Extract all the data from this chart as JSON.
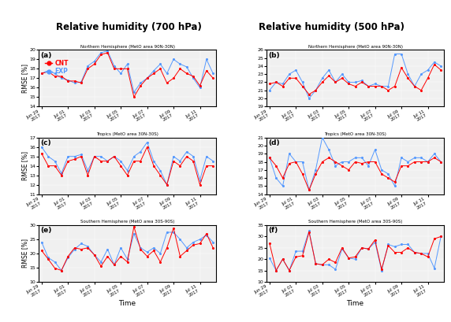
{
  "col_titles": [
    "Relative humidity (700 hPa)",
    "Relative humidity (500 hPa)"
  ],
  "panel_labels": [
    [
      "(a)",
      "(b)"
    ],
    [
      "(c)",
      "(d)"
    ],
    [
      "(e)",
      "(f)"
    ]
  ],
  "subtitles": [
    "Northern Hemisphere (MetO area 90N-30N)",
    "Tropics (MetO area 30N-30S)",
    "Southern Hemisphere (MetO area 30S-90S)"
  ],
  "ylabel": "RMSE [%]",
  "xlabel": "Time",
  "x_ticklabels": [
    "Jun 29\n2017",
    "Jul 01\n2017",
    "Jul 03\n2017",
    "Jul 05\n2017",
    "Jul 07\n2017",
    "Jul 09\n2017",
    "Jul 11\n2017"
  ],
  "cnt_color": "#FF0000",
  "exp_color": "#5599FF",
  "ylims": [
    [
      [
        14,
        20
      ],
      [
        19,
        26
      ]
    ],
    [
      [
        11,
        17
      ],
      [
        14,
        21
      ]
    ],
    [
      [
        10,
        30
      ],
      [
        10,
        35
      ]
    ]
  ],
  "yticks": [
    [
      [
        14,
        15,
        16,
        17,
        18,
        19,
        20
      ],
      [
        19,
        20,
        21,
        22,
        23,
        24,
        25,
        26
      ]
    ],
    [
      [
        11,
        12,
        13,
        14,
        15,
        16,
        17
      ],
      [
        14,
        15,
        16,
        17,
        18,
        19,
        20,
        21
      ]
    ],
    [
      [
        10,
        15,
        20,
        25,
        30
      ],
      [
        10,
        15,
        20,
        25,
        30,
        35
      ]
    ]
  ],
  "data": {
    "700_NH_cnt": [
      17.5,
      17.7,
      17.2,
      17.2,
      16.7,
      16.7,
      16.5,
      18.0,
      18.5,
      19.5,
      19.7,
      18.0,
      18.0,
      18.0,
      15.0,
      16.2,
      17.0,
      17.5,
      18.0,
      16.5,
      17.0,
      18.0,
      17.5,
      17.2,
      16.2,
      17.8,
      17.0
    ],
    "700_NH_exp": [
      17.5,
      17.8,
      17.5,
      17.0,
      16.8,
      16.5,
      16.6,
      18.3,
      18.8,
      19.7,
      19.9,
      18.3,
      17.5,
      18.5,
      15.5,
      16.5,
      17.0,
      17.8,
      18.5,
      17.5,
      19.0,
      18.5,
      18.2,
      17.0,
      16.0,
      19.0,
      17.5
    ],
    "700_TR_cnt": [
      15.3,
      14.0,
      14.0,
      13.0,
      14.5,
      14.7,
      15.0,
      13.0,
      15.0,
      14.5,
      14.5,
      15.0,
      14.0,
      13.0,
      14.5,
      14.5,
      16.0,
      14.0,
      13.0,
      12.0,
      14.5,
      14.0,
      15.0,
      14.5,
      12.0,
      14.0,
      14.0
    ],
    "700_TR_exp": [
      16.0,
      15.0,
      14.5,
      13.2,
      15.0,
      15.0,
      15.2,
      13.5,
      15.0,
      15.0,
      14.5,
      15.0,
      14.5,
      13.5,
      15.0,
      15.5,
      16.5,
      14.5,
      13.5,
      12.0,
      15.0,
      14.5,
      15.5,
      15.0,
      12.5,
      15.0,
      14.5
    ],
    "700_SH_cnt": [
      21.0,
      18.0,
      14.8,
      14.0,
      19.0,
      22.0,
      21.5,
      22.0,
      19.5,
      15.5,
      19.0,
      16.0,
      19.0,
      17.0,
      29.5,
      21.5,
      19.0,
      21.0,
      17.0,
      22.0,
      29.0,
      19.0,
      21.0,
      23.0,
      23.5,
      27.0,
      22.0
    ],
    "700_SH_exp": [
      24.0,
      18.5,
      17.0,
      14.0,
      18.5,
      21.5,
      23.5,
      22.5,
      19.5,
      17.0,
      21.5,
      16.0,
      22.0,
      18.0,
      27.0,
      22.0,
      20.5,
      22.0,
      20.0,
      27.5,
      27.5,
      25.0,
      22.0,
      24.0,
      25.0,
      26.5,
      24.0
    ],
    "500_NH_cnt": [
      21.8,
      22.0,
      21.5,
      22.5,
      22.5,
      21.5,
      20.5,
      21.0,
      22.0,
      22.8,
      22.0,
      22.5,
      21.8,
      21.5,
      22.0,
      21.5,
      21.5,
      21.5,
      21.0,
      21.5,
      23.8,
      22.5,
      21.5,
      21.0,
      22.5,
      24.2,
      23.5
    ],
    "500_NH_exp": [
      21.0,
      22.0,
      21.8,
      23.0,
      23.5,
      22.0,
      20.0,
      21.0,
      22.5,
      23.5,
      22.0,
      23.0,
      22.0,
      22.0,
      22.2,
      21.5,
      21.8,
      21.5,
      21.5,
      25.5,
      25.5,
      23.0,
      21.5,
      23.0,
      23.5,
      24.5,
      24.0
    ],
    "500_TR_cnt": [
      18.5,
      17.5,
      16.0,
      17.8,
      18.0,
      16.5,
      14.5,
      16.5,
      18.0,
      18.5,
      18.0,
      17.5,
      17.0,
      18.0,
      17.8,
      18.0,
      18.0,
      16.5,
      16.0,
      15.5,
      17.5,
      17.5,
      18.0,
      18.0,
      18.0,
      18.5,
      18.0
    ],
    "500_TR_exp": [
      18.5,
      16.0,
      15.0,
      19.0,
      18.0,
      18.0,
      14.5,
      17.0,
      21.0,
      19.5,
      17.5,
      18.0,
      18.0,
      18.5,
      18.5,
      17.5,
      19.5,
      17.0,
      16.5,
      15.0,
      18.5,
      18.0,
      18.5,
      18.5,
      18.0,
      19.0,
      18.0
    ],
    "500_SH_cnt": [
      27.0,
      15.0,
      20.0,
      15.0,
      21.0,
      21.5,
      32.0,
      18.0,
      17.5,
      20.0,
      18.5,
      25.0,
      20.5,
      21.0,
      25.0,
      24.5,
      28.5,
      15.5,
      26.0,
      23.0,
      23.0,
      25.0,
      23.0,
      22.5,
      21.0,
      29.0,
      30.0
    ],
    "500_SH_exp": [
      20.5,
      15.0,
      20.0,
      15.0,
      23.5,
      23.5,
      32.5,
      18.0,
      17.5,
      17.5,
      15.5,
      24.5,
      20.5,
      20.0,
      25.0,
      24.5,
      27.5,
      15.0,
      26.5,
      25.5,
      26.5,
      26.5,
      23.0,
      22.5,
      22.5,
      16.0,
      30.0
    ]
  }
}
